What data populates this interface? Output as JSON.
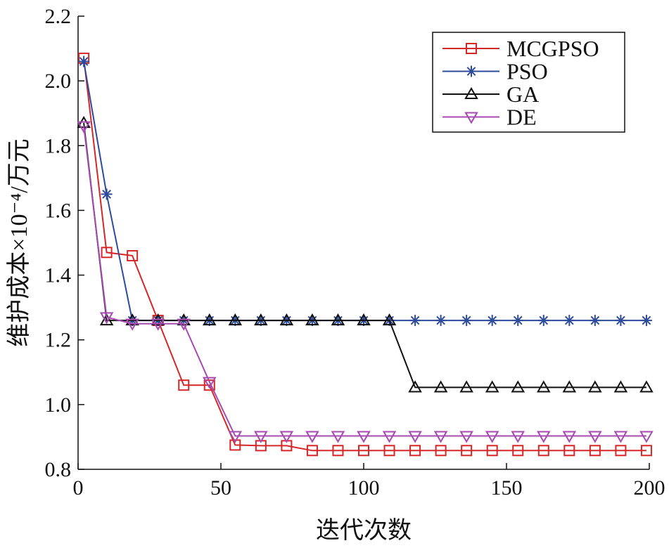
{
  "chart_data": {
    "type": "line",
    "title": "",
    "xlabel": "迭代次数",
    "ylabel": "维护成本×10⁻⁴/万元",
    "xlim": [
      0,
      200
    ],
    "ylim": [
      0.8,
      2.2
    ],
    "xticks": [
      0,
      50,
      100,
      150,
      200
    ],
    "yticks": [
      "0.8",
      "1.0",
      "1.2",
      "1.4",
      "1.6",
      "1.8",
      "2.0",
      "2.2"
    ],
    "legend_position": "top-right",
    "grid": false,
    "series": [
      {
        "name": "MCGPSO",
        "color": "#d62728",
        "marker": "square",
        "x": [
          2,
          10,
          19,
          28,
          37,
          46,
          55,
          64,
          73,
          82,
          91,
          100,
          109,
          118,
          127,
          136,
          145,
          154,
          163,
          172,
          181,
          190,
          199
        ],
        "y": [
          2.07,
          1.47,
          1.46,
          1.26,
          1.06,
          1.06,
          0.875,
          0.873,
          0.873,
          0.858,
          0.858,
          0.858,
          0.858,
          0.858,
          0.858,
          0.858,
          0.858,
          0.858,
          0.858,
          0.858,
          0.858,
          0.858,
          0.858
        ]
      },
      {
        "name": "PSO",
        "color": "#2e4b9b",
        "marker": "asterisk",
        "x": [
          2,
          10,
          19,
          28,
          37,
          46,
          55,
          64,
          73,
          82,
          91,
          100,
          109,
          118,
          127,
          136,
          145,
          154,
          163,
          172,
          181,
          190,
          199
        ],
        "y": [
          2.06,
          1.65,
          1.26,
          1.26,
          1.26,
          1.26,
          1.26,
          1.26,
          1.26,
          1.26,
          1.26,
          1.26,
          1.26,
          1.26,
          1.26,
          1.26,
          1.26,
          1.26,
          1.26,
          1.26,
          1.26,
          1.26,
          1.26
        ]
      },
      {
        "name": "GA",
        "color": "#111111",
        "marker": "triangle-up",
        "x": [
          2,
          10,
          19,
          28,
          37,
          46,
          55,
          64,
          73,
          82,
          91,
          100,
          109,
          118,
          127,
          136,
          145,
          154,
          163,
          172,
          181,
          190,
          199
        ],
        "y": [
          1.87,
          1.26,
          1.26,
          1.26,
          1.26,
          1.26,
          1.26,
          1.26,
          1.26,
          1.26,
          1.26,
          1.26,
          1.26,
          1.053,
          1.053,
          1.053,
          1.053,
          1.053,
          1.053,
          1.053,
          1.053,
          1.053,
          1.053
        ]
      },
      {
        "name": "DE",
        "color": "#a64ab0",
        "marker": "triangle-down",
        "x": [
          2,
          10,
          19,
          28,
          37,
          46,
          55,
          64,
          73,
          82,
          91,
          100,
          109,
          118,
          127,
          136,
          145,
          154,
          163,
          172,
          181,
          190,
          199
        ],
        "y": [
          1.86,
          1.27,
          1.25,
          1.25,
          1.25,
          1.07,
          0.903,
          0.903,
          0.903,
          0.903,
          0.903,
          0.903,
          0.903,
          0.903,
          0.903,
          0.903,
          0.903,
          0.903,
          0.903,
          0.903,
          0.903,
          0.903,
          0.903
        ]
      }
    ]
  }
}
